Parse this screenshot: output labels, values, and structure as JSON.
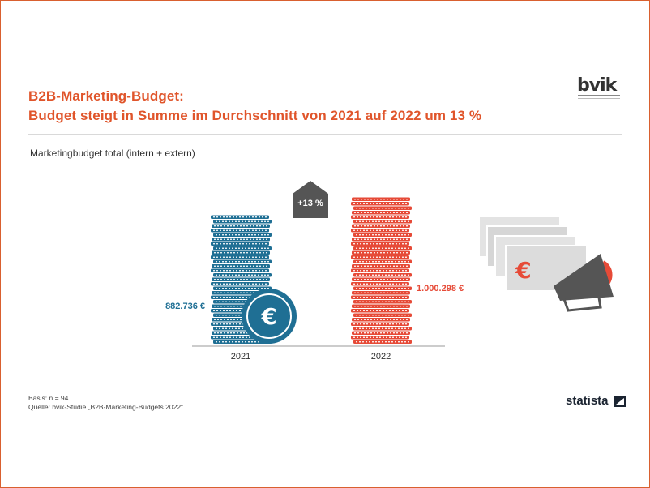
{
  "header": {
    "title_line1": "B2B-Marketing-Budget:",
    "title_line2": "Budget steigt in Summe im Durchschnitt von 2021 auf 2022 um 13 %",
    "subtitle": "Marketingbudget total (intern + extern)"
  },
  "logo": {
    "text": "bvik"
  },
  "colors": {
    "accent": "#e0552b",
    "bar_2021": "#1f6f94",
    "bar_2022": "#e64a37",
    "badge": "#555555"
  },
  "chart_data": {
    "type": "bar",
    "categories": [
      "2021",
      "2022"
    ],
    "values": [
      882736,
      1000298
    ],
    "value_labels": [
      "882.736 €",
      "1.000.298 €"
    ],
    "change_label": "+13 %",
    "currency_symbol": "€",
    "title": "Marketingbudget total (intern + extern)",
    "grid": false
  },
  "footer": {
    "basis": "Basis: n = 94",
    "source": "Quelle: bvik-Studie „B2B-Marketing-Budgets 2022“",
    "brand": "statista"
  },
  "icons": [
    "euro-coin-icon",
    "money-megaphone-icon",
    "statista-logo-icon"
  ]
}
